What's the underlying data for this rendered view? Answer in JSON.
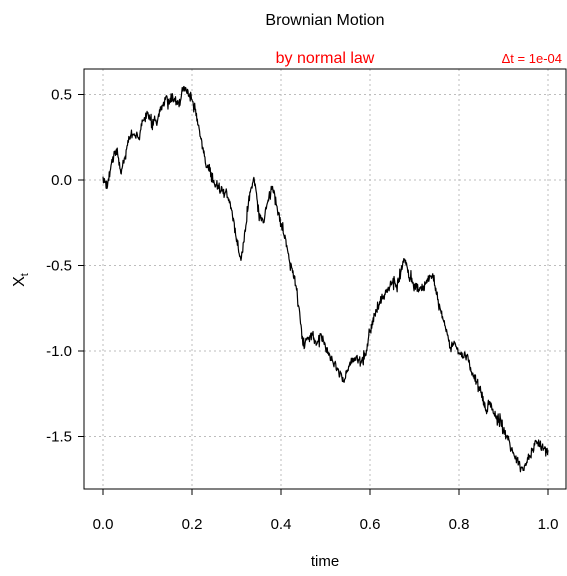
{
  "chart_data": {
    "type": "line",
    "title": "Brownian Motion",
    "subtitle": "by normal law",
    "annotation": "Δt = 1e-04",
    "xlabel": "time",
    "ylabel": "X",
    "ylabel_subscript": "t",
    "xlim": [
      0.0,
      1.0
    ],
    "ylim": [
      -1.8,
      0.55
    ],
    "grid": true,
    "colors": {
      "line": "#000000",
      "subtitle": "#ff0000",
      "annotation": "#ff0000",
      "grid": "#bdbdbd"
    },
    "x_ticks": [
      {
        "value": 0.0,
        "label": "0.0"
      },
      {
        "value": 0.2,
        "label": "0.2"
      },
      {
        "value": 0.4,
        "label": "0.4"
      },
      {
        "value": 0.6,
        "label": "0.6"
      },
      {
        "value": 0.8,
        "label": "0.8"
      },
      {
        "value": 1.0,
        "label": "1.0"
      }
    ],
    "y_ticks": [
      {
        "value": 0.5,
        "label": "0.5"
      },
      {
        "value": 0.0,
        "label": "0.0"
      },
      {
        "value": -0.5,
        "label": "-0.5"
      },
      {
        "value": -1.0,
        "label": "-1.0"
      },
      {
        "value": -1.5,
        "label": "-1.5"
      }
    ],
    "series": [
      {
        "points": [
          [
            0.0,
            0.02
          ],
          [
            0.01,
            -0.04
          ],
          [
            0.02,
            0.12
          ],
          [
            0.03,
            0.18
          ],
          [
            0.04,
            0.04
          ],
          [
            0.05,
            0.14
          ],
          [
            0.06,
            0.25
          ],
          [
            0.07,
            0.27
          ],
          [
            0.08,
            0.24
          ],
          [
            0.09,
            0.35
          ],
          [
            0.1,
            0.39
          ],
          [
            0.11,
            0.34
          ],
          [
            0.12,
            0.33
          ],
          [
            0.13,
            0.41
          ],
          [
            0.14,
            0.47
          ],
          [
            0.15,
            0.46
          ],
          [
            0.16,
            0.47
          ],
          [
            0.17,
            0.45
          ],
          [
            0.18,
            0.52
          ],
          [
            0.19,
            0.53
          ],
          [
            0.2,
            0.47
          ],
          [
            0.21,
            0.39
          ],
          [
            0.22,
            0.24
          ],
          [
            0.23,
            0.1
          ],
          [
            0.24,
            0.05
          ],
          [
            0.25,
            -0.02
          ],
          [
            0.26,
            -0.05
          ],
          [
            0.27,
            -0.08
          ],
          [
            0.28,
            -0.1
          ],
          [
            0.29,
            -0.18
          ],
          [
            0.3,
            -0.36
          ],
          [
            0.31,
            -0.47
          ],
          [
            0.32,
            -0.3
          ],
          [
            0.33,
            -0.07
          ],
          [
            0.34,
            0.0
          ],
          [
            0.35,
            -0.19
          ],
          [
            0.36,
            -0.25
          ],
          [
            0.37,
            -0.13
          ],
          [
            0.38,
            -0.04
          ],
          [
            0.39,
            -0.15
          ],
          [
            0.4,
            -0.27
          ],
          [
            0.41,
            -0.34
          ],
          [
            0.42,
            -0.49
          ],
          [
            0.43,
            -0.56
          ],
          [
            0.44,
            -0.74
          ],
          [
            0.45,
            -0.97
          ],
          [
            0.46,
            -0.92
          ],
          [
            0.47,
            -0.9
          ],
          [
            0.48,
            -0.96
          ],
          [
            0.49,
            -0.9
          ],
          [
            0.5,
            -0.98
          ],
          [
            0.51,
            -1.03
          ],
          [
            0.52,
            -1.07
          ],
          [
            0.53,
            -1.13
          ],
          [
            0.54,
            -1.18
          ],
          [
            0.55,
            -1.11
          ],
          [
            0.56,
            -1.05
          ],
          [
            0.57,
            -1.03
          ],
          [
            0.58,
            -1.07
          ],
          [
            0.59,
            -1.02
          ],
          [
            0.6,
            -0.88
          ],
          [
            0.61,
            -0.79
          ],
          [
            0.62,
            -0.73
          ],
          [
            0.63,
            -0.68
          ],
          [
            0.64,
            -0.64
          ],
          [
            0.65,
            -0.6
          ],
          [
            0.66,
            -0.63
          ],
          [
            0.67,
            -0.53
          ],
          [
            0.68,
            -0.47
          ],
          [
            0.69,
            -0.57
          ],
          [
            0.7,
            -0.61
          ],
          [
            0.71,
            -0.64
          ],
          [
            0.72,
            -0.62
          ],
          [
            0.73,
            -0.59
          ],
          [
            0.74,
            -0.56
          ],
          [
            0.75,
            -0.67
          ],
          [
            0.76,
            -0.78
          ],
          [
            0.77,
            -0.87
          ],
          [
            0.78,
            -0.98
          ],
          [
            0.79,
            -0.95
          ],
          [
            0.8,
            -1.01
          ],
          [
            0.81,
            -1.04
          ],
          [
            0.82,
            -1.03
          ],
          [
            0.83,
            -1.13
          ],
          [
            0.84,
            -1.18
          ],
          [
            0.85,
            -1.24
          ],
          [
            0.86,
            -1.35
          ],
          [
            0.87,
            -1.3
          ],
          [
            0.88,
            -1.38
          ],
          [
            0.89,
            -1.4
          ],
          [
            0.9,
            -1.47
          ],
          [
            0.91,
            -1.52
          ],
          [
            0.92,
            -1.58
          ],
          [
            0.93,
            -1.63
          ],
          [
            0.94,
            -1.68
          ],
          [
            0.95,
            -1.67
          ],
          [
            0.96,
            -1.62
          ],
          [
            0.97,
            -1.55
          ],
          [
            0.98,
            -1.54
          ],
          [
            0.99,
            -1.57
          ],
          [
            1.0,
            -1.58
          ]
        ]
      }
    ]
  }
}
